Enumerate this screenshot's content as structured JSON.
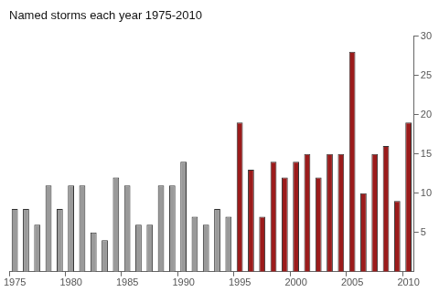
{
  "chart_data": {
    "type": "bar",
    "title": "Named storms each year 1975-2010",
    "categories": [
      "1975",
      null,
      null,
      null,
      null,
      "1980",
      null,
      null,
      null,
      null,
      "1985",
      null,
      null,
      null,
      null,
      "1990",
      null,
      null,
      null,
      null,
      "1995",
      null,
      null,
      null,
      null,
      "2000",
      null,
      null,
      null,
      null,
      "2005",
      null,
      null,
      null,
      null,
      "2010"
    ],
    "values": [
      8,
      8,
      6,
      11,
      8,
      11,
      11,
      5,
      4,
      12,
      11,
      6,
      6,
      11,
      11,
      14,
      7,
      6,
      8,
      7,
      19,
      13,
      7,
      14,
      12,
      14,
      15,
      12,
      15,
      15,
      28,
      10,
      15,
      16,
      9,
      19
    ],
    "colors": [
      "#9a9a9a",
      "#9a9a9a",
      "#9a9a9a",
      "#9a9a9a",
      "#9a9a9a",
      "#9a9a9a",
      "#9a9a9a",
      "#9a9a9a",
      "#9a9a9a",
      "#9a9a9a",
      "#9a9a9a",
      "#9a9a9a",
      "#9a9a9a",
      "#9a9a9a",
      "#9a9a9a",
      "#9a9a9a",
      "#9a9a9a",
      "#9a9a9a",
      "#9a9a9a",
      "#9a9a9a",
      "#9b1b1b",
      "#9b1b1b",
      "#9b1b1b",
      "#9b1b1b",
      "#9b1b1b",
      "#9b1b1b",
      "#9b1b1b",
      "#9b1b1b",
      "#9b1b1b",
      "#9b1b1b",
      "#9b1b1b",
      "#9b1b1b",
      "#9b1b1b",
      "#9b1b1b",
      "#9b1b1b",
      "#9b1b1b"
    ],
    "ylim": [
      0,
      30
    ],
    "yticks": [
      5,
      10,
      15,
      20,
      25,
      30
    ],
    "grid": false
  }
}
